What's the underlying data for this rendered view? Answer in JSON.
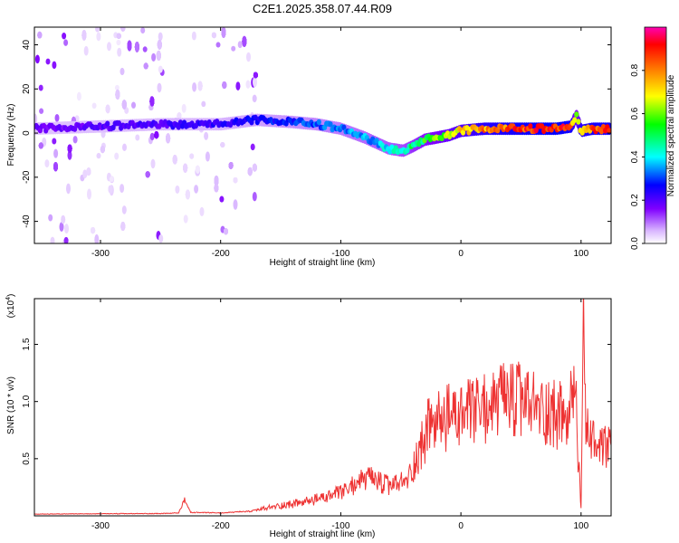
{
  "chart_data": [
    {
      "type": "heatmap",
      "title": "C2E1.2025.358.07.44.R09",
      "xlabel": "Height of straight line (km)",
      "ylabel": "Frequency (Hz)",
      "xlim": [
        -355,
        125
      ],
      "ylim": [
        -50,
        48
      ],
      "xticks": [
        -300,
        -200,
        -100,
        0,
        100
      ],
      "xtick_labels": [
        "-300",
        "-200",
        "-100",
        "0",
        "100"
      ],
      "yticks": [
        -40,
        -20,
        0,
        20,
        40
      ],
      "ytick_labels": [
        "-40",
        "-20",
        "0",
        "20",
        "40"
      ],
      "colorbar": {
        "label": "Normalized spectral amplitude",
        "range": [
          0,
          1
        ],
        "ticks": [
          0.0,
          0.2,
          0.4,
          0.6,
          0.8
        ],
        "tick_labels": [
          "0.0",
          "0.2",
          "0.4",
          "0.6",
          "0.8"
        ],
        "colormap": [
          "#ffffff",
          "#d8b4ff",
          "#8000ff",
          "#0000ff",
          "#00ffff",
          "#00ff00",
          "#ffff00",
          "#ff8000",
          "#ff0000",
          "#ff00b4"
        ]
      },
      "ridge": {
        "height_km": [
          -355,
          -300,
          -250,
          -200,
          -170,
          -140,
          -120,
          -100,
          -80,
          -60,
          -48,
          -40,
          -30,
          -10,
          0,
          20,
          50,
          80,
          92,
          96,
          100,
          110,
          125
        ],
        "frequency_hz": [
          2,
          3,
          4,
          4,
          6,
          5,
          4,
          2,
          -2,
          -7,
          -8,
          -6,
          -3,
          -1,
          1,
          2,
          2,
          2,
          3,
          8,
          1,
          2,
          2
        ],
        "amplitude": [
          0.25,
          0.28,
          0.3,
          0.32,
          0.35,
          0.38,
          0.4,
          0.42,
          0.45,
          0.48,
          0.5,
          0.55,
          0.6,
          0.7,
          0.75,
          0.85,
          0.92,
          0.95,
          0.9,
          0.6,
          0.85,
          0.9,
          0.9
        ]
      }
    },
    {
      "type": "line",
      "xlabel": "Height of straight line (km)",
      "ylabel": "SNR (10 * v/v)",
      "yscale_label": "(x10",
      "yscale_exponent": "4",
      "xlim": [
        -355,
        125
      ],
      "ylim": [
        0,
        19000
      ],
      "xticks": [
        -300,
        -200,
        -100,
        0,
        100
      ],
      "xtick_labels": [
        "-300",
        "-200",
        "-100",
        "0",
        "100"
      ],
      "yticks": [
        5000,
        10000,
        15000
      ],
      "ytick_labels": [
        "0.5",
        "1.0",
        "1.5"
      ],
      "color": "#ee3333",
      "series": [
        {
          "name": "SNR",
          "x": [
            -355,
            -300,
            -250,
            -235,
            -230,
            -225,
            -200,
            -175,
            -160,
            -150,
            -130,
            -110,
            -95,
            -85,
            -75,
            -60,
            -45,
            -35,
            -30,
            -25,
            -20,
            -10,
            0,
            10,
            20,
            30,
            40,
            50,
            60,
            70,
            80,
            90,
            95,
            98,
            100,
            102,
            104,
            106,
            110,
            115,
            120,
            125
          ],
          "y": [
            150,
            180,
            200,
            250,
            1400,
            300,
            250,
            400,
            700,
            900,
            1200,
            1700,
            2200,
            3100,
            3200,
            2600,
            3000,
            5500,
            7000,
            8200,
            8000,
            8600,
            8700,
            9000,
            9400,
            9800,
            10100,
            10000,
            9500,
            9200,
            8900,
            8300,
            12000,
            4500,
            500,
            19000,
            6000,
            8000,
            6500,
            5500,
            6000,
            5800
          ]
        }
      ]
    }
  ]
}
